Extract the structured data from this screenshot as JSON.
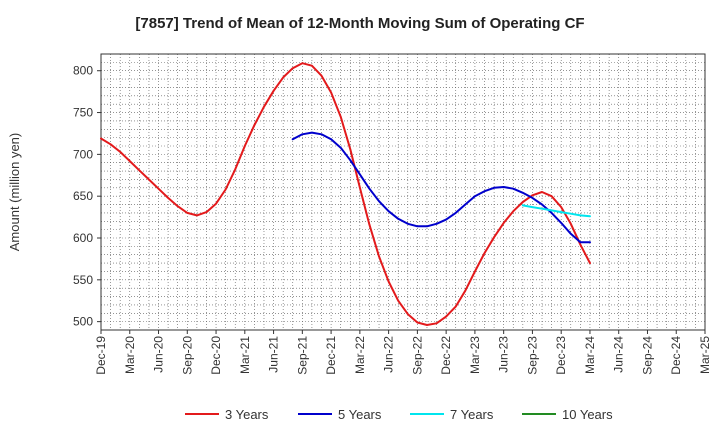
{
  "chart_data": {
    "type": "line",
    "title": "[7857]  Trend of Mean of 12-Month Moving Sum of Operating CF",
    "xlabel": "",
    "ylabel": "Amount (million yen)",
    "ylim": [
      490,
      820
    ],
    "yticks": [
      500,
      550,
      600,
      650,
      700,
      750,
      800
    ],
    "x_tick_labels": [
      "Dec-19",
      "Mar-20",
      "Jun-20",
      "Sep-20",
      "Dec-20",
      "Mar-21",
      "Jun-21",
      "Sep-21",
      "Dec-21",
      "Mar-22",
      "Jun-22",
      "Sep-22",
      "Dec-22",
      "Mar-23",
      "Jun-23",
      "Sep-23",
      "Dec-23",
      "Mar-24",
      "Jun-24",
      "Sep-24",
      "Dec-24",
      "Mar-25"
    ],
    "x_range_months": [
      0,
      63
    ],
    "grid": true,
    "legend_position": "bottom",
    "series": [
      {
        "name": "3 Years",
        "color": "#e31a1c",
        "x_months": [
          0,
          1,
          2,
          3,
          4,
          5,
          6,
          7,
          8,
          9,
          10,
          11,
          12,
          13,
          14,
          15,
          16,
          17,
          18,
          19,
          20,
          21,
          22,
          23,
          24,
          25,
          26,
          27,
          28,
          29,
          30,
          31,
          32,
          33,
          34,
          35,
          36,
          37,
          38,
          39,
          40,
          41,
          42,
          43,
          44,
          45,
          46,
          47,
          48,
          49,
          50,
          51
        ],
        "values": [
          719,
          712,
          703,
          692,
          681,
          670,
          659,
          648,
          638,
          630,
          627,
          631,
          641,
          658,
          682,
          710,
          735,
          757,
          776,
          792,
          803,
          809,
          806,
          794,
          774,
          745,
          706,
          660,
          616,
          578,
          548,
          525,
          509,
          499,
          496,
          498,
          506,
          518,
          537,
          560,
          582,
          601,
          618,
          632,
          643,
          651,
          655,
          650,
          637,
          617,
          592,
          570
        ]
      },
      {
        "name": "5 Years",
        "color": "#0000cc",
        "x_months": [
          20,
          21,
          22,
          23,
          24,
          25,
          26,
          27,
          28,
          29,
          30,
          31,
          32,
          33,
          34,
          35,
          36,
          37,
          38,
          39,
          40,
          41,
          42,
          43,
          44,
          45,
          46,
          47,
          48,
          49,
          50,
          51
        ],
        "values": [
          718,
          724,
          726,
          724,
          718,
          708,
          693,
          676,
          659,
          644,
          632,
          623,
          617,
          614,
          614,
          617,
          622,
          630,
          640,
          650,
          656,
          660,
          661,
          659,
          654,
          648,
          640,
          630,
          618,
          605,
          595,
          595
        ]
      },
      {
        "name": "7 Years",
        "color": "#00e5ee",
        "x_months": [
          44,
          45,
          46,
          47,
          48,
          49,
          50,
          51
        ],
        "values": [
          639,
          637,
          635,
          633,
          631,
          629,
          627,
          626
        ]
      },
      {
        "name": "10 Years",
        "color": "#228b22",
        "x_months": [],
        "values": []
      }
    ]
  }
}
